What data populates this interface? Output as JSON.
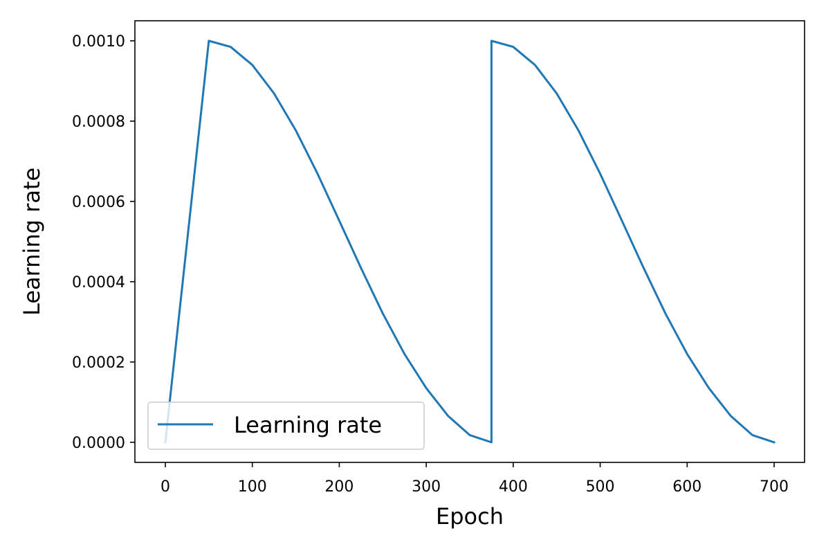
{
  "chart_data": {
    "type": "line",
    "title": "",
    "xlabel": "Epoch",
    "ylabel": "Learning rate",
    "xlim": [
      -35,
      735
    ],
    "ylim": [
      -5e-05,
      0.00105
    ],
    "xticks": [
      0,
      100,
      200,
      300,
      400,
      500,
      600,
      700
    ],
    "xtick_labels": [
      "0",
      "100",
      "200",
      "300",
      "400",
      "500",
      "600",
      "700"
    ],
    "yticks": [
      0,
      0.0002,
      0.0004,
      0.0006,
      0.0008,
      0.001
    ],
    "ytick_labels": [
      "0.0000",
      "0.0002",
      "0.0004",
      "0.0006",
      "0.0008",
      "0.0010"
    ],
    "grid": false,
    "legend": {
      "position": "lower-left"
    },
    "series": [
      {
        "name": "Learning rate",
        "color": "#1f77b4",
        "x": [
          0,
          50,
          75,
          100,
          125,
          150,
          175,
          200,
          225,
          250,
          275,
          300,
          325,
          350,
          375,
          375,
          400,
          425,
          450,
          475,
          500,
          525,
          550,
          575,
          600,
          625,
          650,
          675,
          700
        ],
        "y": [
          0,
          0.001,
          0.000985,
          0.00094,
          0.000869,
          0.000777,
          0.000669,
          0.000552,
          0.000434,
          0.000321,
          0.00022,
          0.000135,
          6.6e-05,
          1.8e-05,
          0,
          0.001,
          0.000985,
          0.00094,
          0.000869,
          0.000777,
          0.000669,
          0.000552,
          0.000434,
          0.000321,
          0.00022,
          0.000135,
          6.6e-05,
          1.8e-05,
          0
        ]
      }
    ]
  }
}
